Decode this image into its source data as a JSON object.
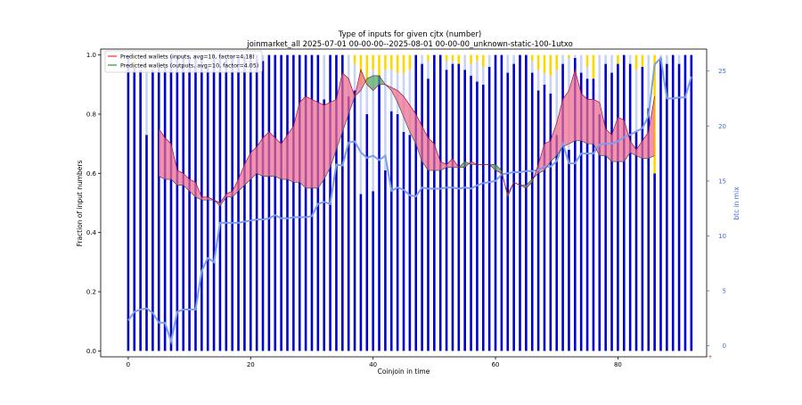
{
  "chart_data": {
    "type": "bar",
    "title": "Type of inputs for given cjtx (number)",
    "subtitle": "joinmarket_all 2025-07-01 00-00-00--2025-08-01 00-00-00_unknown-static-100-1utxo",
    "xlabel": "Coinjoin in time",
    "ylabel": "Fraction of input numbers",
    "ylabel_right": "btc in mix",
    "xlim": [
      -4.5,
      94.5
    ],
    "ylim": [
      -0.02,
      1.02
    ],
    "ylim_right": [
      -1,
      27
    ],
    "x_ticks": [
      0,
      20,
      40,
      60,
      80
    ],
    "y_ticks": [
      0.0,
      0.2,
      0.4,
      0.6,
      0.8,
      1.0
    ],
    "y_ticks_right": [
      0,
      5,
      10,
      15,
      20,
      25
    ],
    "legend_position": "top-left",
    "legend": [
      {
        "label": "Predicted wallets (inputs, avg=10, factor=4.18)",
        "color": "#ff0000"
      },
      {
        "label": "Predicted wallets (outputs, avg=10, factor=4.05)",
        "color": "#008000"
      }
    ],
    "colors": {
      "bar_blue": "#0000cd",
      "bar_lightblue": "#c8d3f5",
      "bar_gold": "#ffd700",
      "bar_orange": "#ff9900",
      "bar_brown": "#8b4513",
      "btc_line": "#7b9fe8",
      "inputs_line": "#ff0000",
      "outputs_line": "#008000",
      "fill_red": "#f07090",
      "fill_green": "#5aa86a",
      "right_axis": "#4169e1"
    },
    "bar_x": [
      0,
      1,
      2,
      3,
      4,
      5,
      6,
      7,
      8,
      9,
      10,
      11,
      12,
      13,
      14,
      15,
      16,
      17,
      18,
      19,
      20,
      21,
      22,
      23,
      24,
      25,
      26,
      27,
      28,
      29,
      30,
      31,
      32,
      33,
      34,
      35,
      36,
      37,
      38,
      39,
      40,
      41,
      42,
      43,
      44,
      45,
      46,
      47,
      48,
      49,
      50,
      51,
      52,
      53,
      54,
      55,
      56,
      57,
      58,
      59,
      60,
      61,
      62,
      63,
      64,
      65,
      66,
      67,
      68,
      69,
      70,
      71,
      72,
      73,
      74,
      75,
      76,
      77,
      78,
      79,
      80,
      81,
      82,
      83,
      84,
      85,
      86,
      87,
      88,
      89,
      90,
      91,
      92
    ],
    "series": [
      {
        "name": "",
        "color_key": "bar_blue",
        "values": [
          1.0,
          0.96,
          0.95,
          0.73,
          0.95,
          0.96,
          0.96,
          1.0,
          1.0,
          1.0,
          1.0,
          1.0,
          1.0,
          0.96,
          1.0,
          1.0,
          1.0,
          1.0,
          1.0,
          1.0,
          1.0,
          1.0,
          0.98,
          1.0,
          1.0,
          1.0,
          1.0,
          1.0,
          1.0,
          1.0,
          1.0,
          1.0,
          0.85,
          1.0,
          1.0,
          1.0,
          0.86,
          0.88,
          0.53,
          0.8,
          0.54,
          0.93,
          0.61,
          0.81,
          0.8,
          0.74,
          0.73,
          1.0,
          0.97,
          0.92,
          1.0,
          1.0,
          0.95,
          0.97,
          0.97,
          0.95,
          0.93,
          0.91,
          0.9,
          0.96,
          1.0,
          1.0,
          0.94,
          0.97,
          1.0,
          1.0,
          0.94,
          0.88,
          0.9,
          0.87,
          0.73,
          0.97,
          0.68,
          0.99,
          0.94,
          0.92,
          0.92,
          0.8,
          0.97,
          0.94,
          0.97,
          1.0,
          0.97,
          0.74,
          0.96,
          0.82,
          0.6,
          0.99,
          0.97,
          1.0,
          0.97,
          1.0,
          1.0
        ]
      },
      {
        "name": "",
        "color_key": "bar_lightblue",
        "values": [
          0.0,
          0.0,
          0.05,
          0.27,
          0.05,
          0.04,
          0.04,
          0.0,
          0.0,
          0.0,
          0.0,
          0.0,
          0.0,
          0.04,
          0.0,
          0.0,
          0.0,
          0.0,
          0.0,
          0.0,
          0.0,
          0.0,
          0.02,
          0.0,
          0.0,
          0.0,
          0.0,
          0.0,
          0.0,
          0.0,
          0.0,
          0.0,
          0.15,
          0.0,
          0.0,
          0.0,
          0.14,
          0.09,
          0.37,
          0.1,
          0.41,
          0.0,
          0.34,
          0.14,
          0.14,
          0.2,
          0.22,
          0.0,
          0.03,
          0.06,
          0.0,
          0.0,
          0.03,
          0.01,
          0.0,
          0.05,
          0.04,
          0.07,
          0.06,
          0.04,
          0.0,
          0.0,
          0.06,
          0.03,
          0.0,
          0.0,
          0.04,
          0.07,
          0.04,
          0.06,
          0.22,
          0.03,
          0.31,
          0.01,
          0.06,
          0.04,
          0.0,
          0.2,
          0.03,
          0.06,
          0.0,
          0.0,
          0.03,
          0.21,
          0.0,
          0.18,
          0.0,
          0.01,
          0.03,
          0.0,
          0.03,
          0.0,
          0.0
        ]
      },
      {
        "name": "",
        "color_key": "bar_gold",
        "values": [
          0.0,
          0.04,
          0.0,
          0.0,
          0.0,
          0.0,
          0.0,
          0.0,
          0.0,
          0.0,
          0.0,
          0.0,
          0.0,
          0.0,
          0.0,
          0.0,
          0.0,
          0.0,
          0.0,
          0.0,
          0.0,
          0.0,
          0.0,
          0.0,
          0.0,
          0.0,
          0.0,
          0.0,
          0.0,
          0.0,
          0.0,
          0.0,
          0.0,
          0.0,
          0.0,
          0.0,
          0.0,
          0.03,
          0.1,
          0.1,
          0.05,
          0.07,
          0.05,
          0.05,
          0.06,
          0.06,
          0.05,
          0.0,
          0.0,
          0.02,
          0.0,
          0.0,
          0.02,
          0.02,
          0.03,
          0.0,
          0.03,
          0.02,
          0.04,
          0.0,
          0.0,
          0.0,
          0.0,
          0.0,
          0.0,
          0.0,
          0.02,
          0.05,
          0.06,
          0.07,
          0.05,
          0.0,
          0.01,
          0.0,
          0.0,
          0.04,
          0.08,
          0.0,
          0.0,
          0.0,
          0.03,
          0.0,
          0.0,
          0.05,
          0.04,
          0.0,
          0.4,
          0.0,
          0.0,
          0.0,
          0.0,
          0.0,
          0.0
        ]
      },
      {
        "name": "",
        "color_key": "bar_orange",
        "values": [
          0.0,
          0.0,
          0.0,
          0.0,
          0.0,
          0.0,
          0.0,
          0.0,
          0.0,
          0.0,
          0.0,
          0.0,
          0.0,
          0.0,
          0.0,
          0.0,
          0.0,
          0.0,
          0.0,
          0.0,
          0.0,
          0.0,
          0.0,
          0.0,
          0.0,
          0.0,
          0.0,
          0.0,
          0.0,
          0.0,
          0.0,
          0.0,
          0.0,
          0.0,
          0.0,
          0.0,
          0.0,
          0.0,
          0.0,
          0.0,
          0.0,
          0.0,
          0.0,
          0.0,
          0.0,
          0.0,
          0.0,
          0.0,
          0.0,
          0.0,
          0.0,
          0.0,
          0.0,
          0.0,
          0.0,
          0.0,
          0.0,
          0.0,
          0.0,
          0.0,
          0.0,
          0.0,
          0.0,
          0.0,
          0.0,
          0.0,
          0.0,
          0.0,
          0.0,
          0.0,
          0.0,
          0.0,
          0.0,
          0.0,
          0.0,
          0.0,
          0.0,
          0.0,
          0.0,
          0.0,
          0.0,
          0.0,
          0.0,
          0.0,
          0.0,
          0.0,
          0.0,
          0.0,
          0.0,
          0.0,
          0.0,
          0.0,
          0.0
        ]
      },
      {
        "name": "",
        "color_key": "bar_brown",
        "values": [
          0.0,
          0.0,
          0.0,
          0.0,
          0.0,
          0.0,
          0.0,
          0.0,
          0.0,
          0.0,
          0.0,
          0.0,
          0.0,
          0.0,
          0.0,
          0.0,
          0.0,
          0.0,
          0.0,
          0.0,
          0.0,
          0.0,
          0.0,
          0.0,
          0.0,
          0.0,
          0.0,
          0.0,
          0.0,
          0.0,
          0.0,
          0.0,
          0.0,
          0.0,
          0.0,
          0.0,
          0.0,
          0.0,
          0.0,
          0.0,
          0.0,
          0.0,
          0.0,
          0.0,
          0.0,
          0.0,
          0.0,
          0.0,
          0.0,
          0.0,
          0.0,
          0.0,
          0.0,
          0.0,
          0.0,
          0.0,
          0.0,
          0.0,
          0.0,
          0.0,
          0.0,
          0.0,
          0.0,
          0.0,
          0.0,
          0.0,
          0.0,
          0.0,
          0.0,
          0.0,
          0.0,
          0.0,
          0.0,
          0.0,
          0.0,
          0.0,
          0.0,
          0.0,
          0.0,
          0.0,
          0.0,
          0.0,
          0.0,
          0.0,
          0.0,
          0.0,
          0.0,
          0.0,
          0.0,
          0.0,
          0.0,
          0.0,
          0.0
        ]
      }
    ],
    "extra_stacks": [
      {
        "x": 37,
        "orange": 0.02
      },
      {
        "x": 38,
        "brown": 0.05
      },
      {
        "x": 39,
        "orange": 0.03
      },
      {
        "x": 40,
        "brown": 0.04
      },
      {
        "x": 41,
        "orange": 0.02
      },
      {
        "x": 43,
        "brown": 0.04
      },
      {
        "x": 44,
        "orange": 0.02
      },
      {
        "x": 58,
        "orange": 0.04
      }
    ],
    "btc_line": {
      "name": "",
      "x": [
        0,
        1,
        2,
        3,
        4,
        5,
        6,
        7,
        8,
        9,
        10,
        11,
        12,
        13,
        14,
        15,
        16,
        17,
        18,
        19,
        20,
        21,
        22,
        23,
        24,
        25,
        26,
        27,
        28,
        29,
        30,
        31,
        32,
        33,
        34,
        35,
        36,
        37,
        38,
        39,
        40,
        41,
        42,
        43,
        44,
        45,
        46,
        47,
        48,
        49,
        50,
        51,
        52,
        53,
        54,
        55,
        56,
        57,
        58,
        59,
        60,
        61,
        62,
        63,
        64,
        65,
        66,
        67,
        68,
        69,
        70,
        71,
        72,
        73,
        74,
        75,
        76,
        77,
        78,
        79,
        80,
        81,
        82,
        83,
        84,
        85,
        86,
        87,
        88,
        89,
        90,
        91,
        92
      ],
      "values": [
        2.3,
        3.1,
        3.3,
        3.4,
        3.0,
        2.1,
        2.1,
        0.4,
        3.1,
        3.3,
        3.3,
        3.3,
        6.8,
        8.0,
        7.6,
        11.2,
        11.2,
        11.2,
        11.2,
        11.3,
        11.4,
        11.5,
        11.5,
        11.6,
        11.9,
        11.6,
        11.6,
        11.7,
        11.7,
        11.7,
        11.8,
        12.9,
        13.1,
        12.9,
        16.5,
        16.4,
        18.5,
        18.6,
        17.6,
        17.1,
        17.3,
        16.9,
        17.3,
        14.1,
        14.4,
        14.2,
        13.7,
        13.6,
        14.4,
        14.3,
        14.3,
        14.3,
        14.4,
        14.4,
        14.3,
        14.4,
        14.3,
        14.6,
        14.8,
        14.9,
        15.0,
        15.6,
        15.7,
        15.8,
        15.8,
        15.9,
        15.9,
        16.0,
        16.3,
        16.3,
        16.8,
        18.4,
        16.6,
        16.6,
        17.5,
        17.5,
        17.5,
        18.3,
        18.4,
        18.4,
        18.6,
        19.0,
        19.2,
        19.5,
        19.8,
        20.9,
        25.6,
        26.2,
        22.5,
        22.5,
        22.6,
        22.6,
        24.5
      ]
    },
    "inputs_line": {
      "x": [
        5,
        6,
        7,
        8,
        9,
        10,
        11,
        12,
        13,
        14,
        15,
        16,
        17,
        18,
        19,
        20,
        21,
        22,
        23,
        24,
        25,
        26,
        27,
        28,
        29,
        30,
        31,
        32,
        33,
        34,
        35,
        36,
        37,
        38,
        39,
        40,
        41,
        42,
        43,
        44,
        45,
        46,
        47,
        48,
        49,
        50,
        51,
        52,
        53,
        54,
        55,
        56,
        57,
        58,
        59,
        60,
        61,
        62,
        63,
        64,
        65,
        66,
        67,
        68,
        69,
        70,
        71,
        72,
        73,
        74,
        75,
        76,
        77,
        78,
        79,
        80,
        81,
        82,
        83,
        84,
        85,
        86
      ],
      "values": [
        0.75,
        0.72,
        0.7,
        0.61,
        0.6,
        0.58,
        0.57,
        0.52,
        0.52,
        0.51,
        0.5,
        0.53,
        0.54,
        0.58,
        0.63,
        0.67,
        0.69,
        0.72,
        0.74,
        0.72,
        0.7,
        0.73,
        0.76,
        0.84,
        0.86,
        0.85,
        0.84,
        0.83,
        0.84,
        0.85,
        0.94,
        0.92,
        0.86,
        0.95,
        0.9,
        0.88,
        0.9,
        0.9,
        0.89,
        0.88,
        0.86,
        0.83,
        0.8,
        0.76,
        0.72,
        0.7,
        0.64,
        0.63,
        0.65,
        0.62,
        0.62,
        0.64,
        0.63,
        0.63,
        0.63,
        0.61,
        0.6,
        0.53,
        0.57,
        0.56,
        0.55,
        0.57,
        0.63,
        0.7,
        0.71,
        0.77,
        0.85,
        0.88,
        0.95,
        0.87,
        0.85,
        0.85,
        0.84,
        0.75,
        0.73,
        0.79,
        0.78,
        0.71,
        0.68,
        0.71,
        0.74,
        0.86
      ]
    },
    "outputs_line": {
      "x": [
        5,
        6,
        7,
        8,
        9,
        10,
        11,
        12,
        13,
        14,
        15,
        16,
        17,
        18,
        19,
        20,
        21,
        22,
        23,
        24,
        25,
        26,
        27,
        28,
        29,
        30,
        31,
        32,
        33,
        34,
        35,
        36,
        37,
        38,
        39,
        40,
        41,
        42,
        43,
        44,
        45,
        46,
        47,
        48,
        49,
        50,
        51,
        52,
        53,
        54,
        55,
        56,
        57,
        58,
        59,
        60,
        61,
        62,
        63,
        64,
        65,
        66,
        67,
        68,
        69,
        70,
        71,
        72,
        73,
        74,
        75,
        76,
        77,
        78,
        79,
        80,
        81,
        82,
        83,
        84,
        85,
        86
      ],
      "values": [
        0.59,
        0.58,
        0.58,
        0.56,
        0.56,
        0.54,
        0.52,
        0.51,
        0.51,
        0.51,
        0.49,
        0.52,
        0.52,
        0.54,
        0.56,
        0.58,
        0.6,
        0.59,
        0.59,
        0.59,
        0.58,
        0.58,
        0.57,
        0.57,
        0.55,
        0.55,
        0.55,
        0.58,
        0.62,
        0.68,
        0.74,
        0.8,
        0.86,
        0.88,
        0.92,
        0.93,
        0.93,
        0.9,
        0.88,
        0.84,
        0.79,
        0.74,
        0.7,
        0.64,
        0.61,
        0.61,
        0.61,
        0.62,
        0.62,
        0.62,
        0.64,
        0.63,
        0.63,
        0.63,
        0.63,
        0.63,
        0.61,
        0.52,
        0.57,
        0.56,
        0.56,
        0.58,
        0.6,
        0.61,
        0.64,
        0.66,
        0.69,
        0.7,
        0.71,
        0.71,
        0.7,
        0.7,
        0.66,
        0.66,
        0.64,
        0.64,
        0.64,
        0.67,
        0.66,
        0.65,
        0.65,
        0.66
      ]
    },
    "right_corner_mark": "+"
  }
}
